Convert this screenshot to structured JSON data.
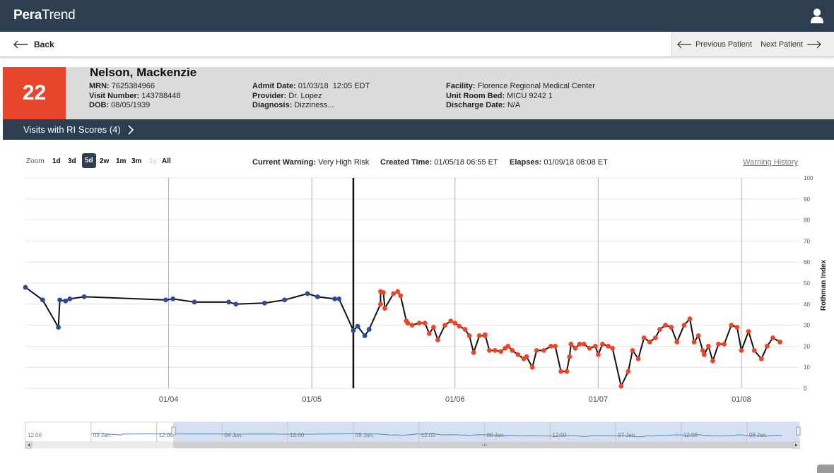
{
  "header": {
    "logo_bold": "Pera",
    "logo_light": "Trend",
    "user_icon": "user-icon"
  },
  "nav": {
    "back": "Back",
    "previous": "Previous Patient",
    "next": "Next Patient"
  },
  "patient": {
    "score": "22",
    "name": "Nelson, Mackenzie",
    "mrn_label": "MRN:",
    "mrn": "7625384966",
    "visit_label": "Visit Number:",
    "visit": "143788448",
    "dob_label": "DOB:",
    "dob": "08/05/1939",
    "admit_label": "Admit Date:",
    "admit": "01/03/18  12:05 EDT",
    "provider_label": "Provider:",
    "provider": "Dr. Lopez",
    "diagnosis_label": "Diagnosis:",
    "diagnosis": "Dizziness...",
    "facility_label": "Facility:",
    "facility": "Florence Regional Medical Center",
    "unit_label": "Unit Room Bed:",
    "unit": "MICU 9242 1",
    "discharge_label": "Discharge Date:",
    "discharge": "N/A"
  },
  "visits_bar": {
    "label": "Visits with RI Scores (4)"
  },
  "toolbar": {
    "zoom_label": "Zoom",
    "zoom_options": [
      "1d",
      "3d",
      "5d",
      "2w",
      "1m",
      "3m",
      "1y",
      "All"
    ],
    "active_zoom": "5d",
    "current_warning_label": "Current Warning:",
    "current_warning": "Very High Risk",
    "created_label": "Created Time:",
    "created": "01/05/18 06:55 ET",
    "elapses_label": "Elapses:",
    "elapses": "01/09/18 08:08 ET",
    "warning_history": "Warning History"
  },
  "colors": {
    "header": "#2c3e50",
    "score_bg": "#e8452c",
    "point_blue": "#2b4a9a",
    "point_red": "#f04428",
    "navigator_fill": "#d5e1f0"
  },
  "chart_data": {
    "type": "line",
    "ylabel": "Rothman Index",
    "ylim": [
      0,
      100
    ],
    "yticks": [
      0,
      10,
      20,
      30,
      40,
      50,
      60,
      70,
      80,
      90,
      100
    ],
    "xlim": [
      3.0,
      8.4
    ],
    "xticks": [
      {
        "x": 4,
        "label": "01/04"
      },
      {
        "x": 5,
        "label": "01/05"
      },
      {
        "x": 6,
        "label": "01/06"
      },
      {
        "x": 7,
        "label": "01/07"
      },
      {
        "x": 8,
        "label": "01/08"
      }
    ],
    "grid": true,
    "warning_created_x": 5.29,
    "series": [
      {
        "color": "#2b4a9a",
        "points": [
          [
            3.0,
            48
          ],
          [
            3.12,
            42
          ],
          [
            3.23,
            29
          ],
          [
            3.24,
            42
          ],
          [
            3.28,
            41.5
          ],
          [
            3.31,
            42.5
          ],
          [
            3.41,
            43.5
          ],
          [
            3.98,
            42
          ],
          [
            4.03,
            42.5
          ],
          [
            4.18,
            41
          ],
          [
            4.42,
            41
          ],
          [
            4.47,
            40
          ],
          [
            4.67,
            40.5
          ],
          [
            4.81,
            42
          ],
          [
            4.97,
            45
          ],
          [
            5.04,
            43.5
          ],
          [
            5.16,
            42.5
          ],
          [
            5.19,
            42.5
          ],
          [
            5.29,
            27.5
          ],
          [
            5.32,
            29.5
          ],
          [
            5.37,
            25
          ],
          [
            5.4,
            28
          ]
        ]
      },
      {
        "color": "#f04428",
        "points": [
          [
            5.48,
            40
          ],
          [
            5.48,
            46
          ],
          [
            5.5,
            45.5
          ],
          [
            5.51,
            38
          ],
          [
            5.57,
            45
          ],
          [
            5.6,
            46
          ],
          [
            5.62,
            44
          ],
          [
            5.66,
            32
          ],
          [
            5.67,
            31
          ],
          [
            5.7,
            30
          ],
          [
            5.75,
            31
          ],
          [
            5.79,
            31
          ],
          [
            5.82,
            26
          ],
          [
            5.85,
            29
          ],
          [
            5.88,
            23
          ],
          [
            5.93,
            30
          ],
          [
            5.97,
            32
          ],
          [
            6.0,
            31
          ],
          [
            6.03,
            29.5
          ],
          [
            6.07,
            28
          ],
          [
            6.1,
            25
          ],
          [
            6.13,
            17
          ],
          [
            6.17,
            25
          ],
          [
            6.21,
            25
          ],
          [
            6.21,
            25.5
          ],
          [
            6.24,
            18
          ],
          [
            6.28,
            18
          ],
          [
            6.32,
            17.5
          ],
          [
            6.35,
            19
          ],
          [
            6.37,
            20
          ],
          [
            6.4,
            18
          ],
          [
            6.44,
            16
          ],
          [
            6.48,
            14
          ],
          [
            6.5,
            15
          ],
          [
            6.54,
            10
          ],
          [
            6.57,
            18
          ],
          [
            6.62,
            18
          ],
          [
            6.67,
            20
          ],
          [
            6.7,
            20
          ],
          [
            6.74,
            8
          ],
          [
            6.78,
            8
          ],
          [
            6.8,
            15
          ],
          [
            6.81,
            21
          ],
          [
            6.84,
            19
          ],
          [
            6.87,
            21
          ],
          [
            6.9,
            21
          ],
          [
            6.94,
            19
          ],
          [
            6.98,
            20
          ],
          [
            7.0,
            16
          ],
          [
            7.03,
            21
          ],
          [
            7.07,
            20
          ],
          [
            7.1,
            19
          ],
          [
            7.16,
            1
          ],
          [
            7.21,
            8
          ],
          [
            7.24,
            18
          ],
          [
            7.28,
            14
          ],
          [
            7.32,
            24
          ],
          [
            7.36,
            22
          ],
          [
            7.4,
            24
          ],
          [
            7.43,
            28
          ],
          [
            7.47,
            30
          ],
          [
            7.51,
            29
          ],
          [
            7.55,
            22
          ],
          [
            7.6,
            30
          ],
          [
            7.64,
            33
          ],
          [
            7.67,
            22
          ],
          [
            7.7,
            25
          ],
          [
            7.73,
            18
          ],
          [
            7.74,
            16
          ],
          [
            7.77,
            20
          ],
          [
            7.8,
            13
          ],
          [
            7.84,
            21
          ],
          [
            7.88,
            21
          ],
          [
            7.93,
            30
          ],
          [
            7.97,
            29
          ],
          [
            8.0,
            18
          ],
          [
            8.05,
            27
          ],
          [
            8.09,
            18
          ],
          [
            8.14,
            14
          ],
          [
            8.18,
            20
          ],
          [
            8.22,
            24
          ],
          [
            8.27,
            22
          ]
        ]
      }
    ]
  },
  "navigator": {
    "labels": [
      "12:00",
      "03 Jan.",
      "12:00",
      "04 Jan.",
      "12:00",
      "05 Jan.",
      "12:00",
      "06 Jan.",
      "12:00",
      "07 Jan.",
      "12:00",
      "08 Jan."
    ]
  }
}
